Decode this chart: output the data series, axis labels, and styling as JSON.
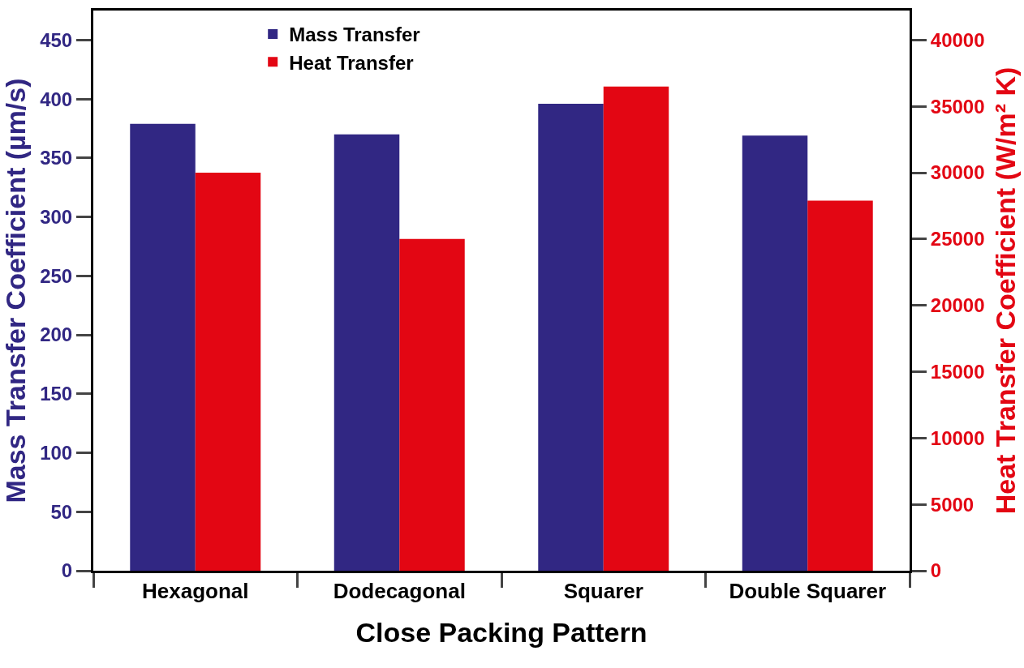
{
  "chart_data": {
    "type": "bar",
    "xlabel": "Close Packing Pattern",
    "ylabel": "Mass Transfer Coefficient (µm/s)",
    "y2label": "Heat Transfer Coefficient (W/m² K)",
    "categories": [
      "Hexagonal",
      "Dodecagonal",
      "Squarer",
      "Double Squarer"
    ],
    "series": [
      {
        "name": "Mass Transfer",
        "color": "#312783",
        "values": [
          379,
          370,
          396,
          369
        ]
      },
      {
        "name": "Heat Transfer",
        "color": "#e30613",
        "axis": "y2",
        "values": [
          30000,
          25000,
          36500,
          27900
        ]
      }
    ],
    "ylim": [
      0,
      475
    ],
    "yticks": [
      0,
      50,
      100,
      150,
      200,
      250,
      300,
      350,
      400,
      450
    ],
    "y2lim": [
      0,
      42222
    ],
    "y2ticks": [
      0,
      5000,
      10000,
      15000,
      20000,
      25000,
      30000,
      35000,
      40000
    ],
    "legend": "top left"
  }
}
